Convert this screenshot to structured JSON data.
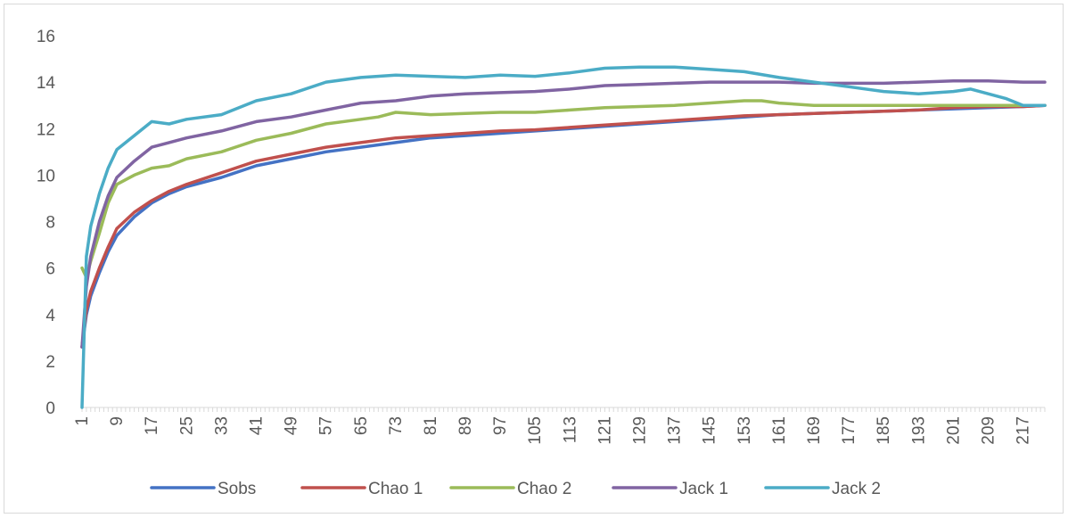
{
  "chart_data": {
    "type": "line",
    "title": "",
    "xlabel": "",
    "ylabel": "",
    "ylim": [
      0,
      16
    ],
    "y_ticks": [
      0,
      2,
      4,
      6,
      8,
      10,
      12,
      14,
      16
    ],
    "x_range": [
      1,
      222
    ],
    "x_ticks": [
      1,
      9,
      17,
      25,
      33,
      41,
      49,
      57,
      65,
      73,
      81,
      89,
      97,
      105,
      113,
      121,
      129,
      137,
      145,
      153,
      161,
      169,
      177,
      185,
      193,
      201,
      209,
      217
    ],
    "x_tick_labels": [
      "1",
      "9",
      "17",
      "25",
      "33",
      "41",
      "49",
      "57",
      "65",
      "73",
      "81",
      "89",
      "97",
      "105",
      "113",
      "121",
      "129",
      "137",
      "145",
      "153",
      "161",
      "169",
      "177",
      "185",
      "193",
      "201",
      "209",
      "217"
    ],
    "grid": false,
    "legend_position": "bottom",
    "series": [
      {
        "name": "Sobs",
        "color": "#4472C4",
        "x": [
          1,
          2,
          3,
          5,
          7,
          9,
          13,
          17,
          21,
          25,
          33,
          41,
          49,
          57,
          65,
          73,
          81,
          89,
          97,
          105,
          113,
          121,
          129,
          137,
          145,
          153,
          161,
          169,
          177,
          185,
          193,
          201,
          209,
          217,
          222
        ],
        "y": [
          2.6,
          4.0,
          4.8,
          5.8,
          6.7,
          7.4,
          8.2,
          8.8,
          9.2,
          9.5,
          9.9,
          10.4,
          10.7,
          11.0,
          11.2,
          11.4,
          11.6,
          11.7,
          11.8,
          11.9,
          12.0,
          12.1,
          12.2,
          12.3,
          12.4,
          12.5,
          12.6,
          12.65,
          12.7,
          12.75,
          12.8,
          12.85,
          12.9,
          12.95,
          13.0
        ]
      },
      {
        "name": "Chao 1",
        "color": "#C0504D",
        "x": [
          1,
          2,
          3,
          5,
          7,
          9,
          13,
          17,
          21,
          25,
          33,
          41,
          49,
          57,
          65,
          73,
          81,
          89,
          97,
          105,
          113,
          121,
          129,
          137,
          145,
          153,
          161,
          169,
          177,
          185,
          193,
          201,
          209,
          217,
          222
        ],
        "y": [
          2.6,
          4.2,
          5.0,
          6.0,
          6.9,
          7.7,
          8.4,
          8.9,
          9.3,
          9.6,
          10.1,
          10.6,
          10.9,
          11.2,
          11.4,
          11.6,
          11.7,
          11.8,
          11.9,
          11.95,
          12.05,
          12.15,
          12.25,
          12.35,
          12.45,
          12.55,
          12.6,
          12.65,
          12.7,
          12.75,
          12.8,
          12.9,
          12.95,
          12.95,
          13.0
        ]
      },
      {
        "name": "Chao 2",
        "color": "#9BBB59",
        "x": [
          1,
          2,
          3,
          5,
          7,
          9,
          11,
          13,
          17,
          21,
          25,
          33,
          41,
          49,
          57,
          65,
          69,
          73,
          81,
          89,
          97,
          105,
          113,
          121,
          129,
          137,
          145,
          153,
          157,
          161,
          169,
          177,
          185,
          193,
          201,
          209,
          217,
          222
        ],
        "y": [
          6.0,
          5.6,
          6.3,
          7.5,
          8.8,
          9.6,
          9.8,
          10.0,
          10.3,
          10.4,
          10.7,
          11.0,
          11.5,
          11.8,
          12.2,
          12.4,
          12.5,
          12.7,
          12.6,
          12.65,
          12.7,
          12.7,
          12.8,
          12.9,
          12.95,
          13.0,
          13.1,
          13.2,
          13.2,
          13.1,
          13.0,
          13.0,
          13.0,
          13.0,
          13.0,
          13.0,
          13.0,
          13.0
        ]
      },
      {
        "name": "Jack 1",
        "color": "#8064A2",
        "x": [
          1,
          2,
          3,
          5,
          7,
          9,
          13,
          17,
          21,
          25,
          33,
          41,
          49,
          57,
          65,
          73,
          81,
          89,
          97,
          105,
          113,
          121,
          129,
          137,
          145,
          153,
          161,
          169,
          177,
          185,
          193,
          201,
          209,
          217,
          222
        ],
        "y": [
          2.6,
          5.2,
          6.5,
          8.0,
          9.1,
          9.9,
          10.6,
          11.2,
          11.4,
          11.6,
          11.9,
          12.3,
          12.5,
          12.8,
          13.1,
          13.2,
          13.4,
          13.5,
          13.55,
          13.6,
          13.7,
          13.85,
          13.9,
          13.95,
          14.0,
          14.0,
          14.0,
          13.95,
          13.95,
          13.95,
          14.0,
          14.05,
          14.05,
          14.0,
          14.0
        ]
      },
      {
        "name": "Jack 2",
        "color": "#4BACC6",
        "x": [
          1,
          2,
          3,
          5,
          7,
          9,
          13,
          17,
          21,
          25,
          33,
          41,
          49,
          57,
          65,
          73,
          81,
          89,
          97,
          105,
          113,
          121,
          129,
          137,
          145,
          153,
          161,
          169,
          177,
          185,
          193,
          201,
          205,
          209,
          213,
          217,
          222
        ],
        "y": [
          0.0,
          6.5,
          7.8,
          9.2,
          10.3,
          11.1,
          11.7,
          12.3,
          12.2,
          12.4,
          12.6,
          13.2,
          13.5,
          14.0,
          14.2,
          14.3,
          14.25,
          14.2,
          14.3,
          14.25,
          14.4,
          14.6,
          14.65,
          14.65,
          14.55,
          14.45,
          14.2,
          14.0,
          13.8,
          13.6,
          13.5,
          13.6,
          13.7,
          13.5,
          13.3,
          13.0,
          13.0
        ]
      }
    ]
  }
}
